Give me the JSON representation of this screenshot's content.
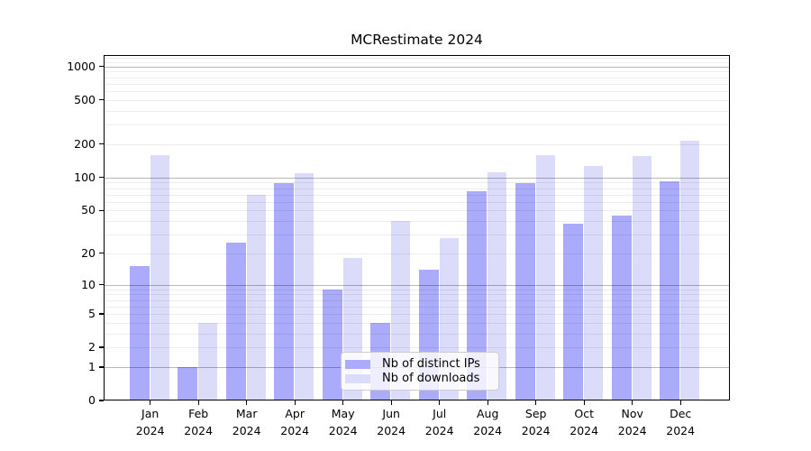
{
  "chart_data": {
    "type": "bar",
    "title": "MCRestimate 2024",
    "months": [
      "Jan",
      "Feb",
      "Mar",
      "Apr",
      "May",
      "Jun",
      "Jul",
      "Aug",
      "Sep",
      "Oct",
      "Nov",
      "Dec"
    ],
    "year_label": "2024",
    "series": [
      {
        "name": "Nb of distinct IPs",
        "color": "#aaabfa",
        "values": [
          15,
          1,
          25,
          88,
          9,
          4,
          14,
          75,
          88,
          38,
          45,
          92
        ]
      },
      {
        "name": "Nb of downloads",
        "color": "#dadcf9",
        "values": [
          160,
          4,
          70,
          109,
          18,
          40,
          28,
          112,
          160,
          127,
          155,
          215
        ]
      }
    ],
    "y_axis": {
      "scale": "log10(1+v)",
      "ticks": [
        1000,
        500,
        200,
        100,
        50,
        20,
        10,
        5,
        2,
        1,
        0
      ],
      "range": [
        0,
        1270
      ],
      "grid": "on",
      "minor_grid_values": [
        2,
        3,
        4,
        5,
        6,
        7,
        8,
        9,
        20,
        30,
        40,
        50,
        60,
        70,
        80,
        90,
        200,
        300,
        400,
        500,
        600,
        700,
        800,
        900,
        1100,
        1200
      ],
      "major_grid_values": [
        1,
        10,
        100,
        1000
      ]
    },
    "legend": {
      "position": "lower center-right"
    }
  }
}
